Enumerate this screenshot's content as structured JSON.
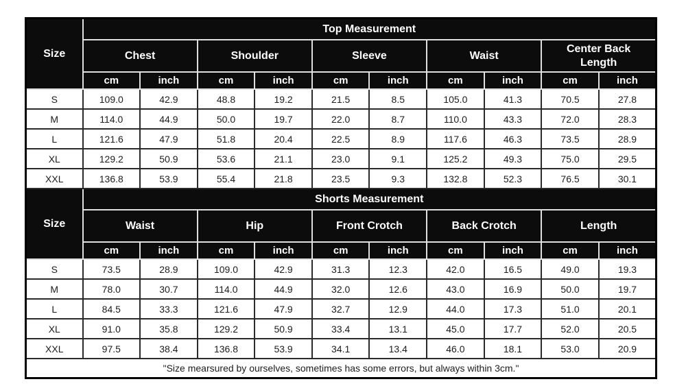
{
  "page": {
    "background": "#ffffff"
  },
  "colors": {
    "header_bg": "#0c0c0c",
    "header_text": "#ffffff",
    "cell_bg": "#ffffff",
    "cell_text": "#1c1c1c",
    "grid_light": "#e0e0e0",
    "grid_dark": "#2a2a2a",
    "outer_border": "#000000"
  },
  "chart_data": [
    {
      "type": "table",
      "title": "Top Measurement",
      "size_header": "Size",
      "measure_columns": [
        "Chest",
        "Shoulder",
        "Sleeve",
        "Waist",
        "Center Back Length"
      ],
      "unit_columns": [
        "cm",
        "inch"
      ],
      "row_labels": [
        "S",
        "M",
        "L",
        "XL",
        "XXL"
      ],
      "rows": [
        [
          "109.0",
          "42.9",
          "48.8",
          "19.2",
          "21.5",
          "8.5",
          "105.0",
          "41.3",
          "70.5",
          "27.8"
        ],
        [
          "114.0",
          "44.9",
          "50.0",
          "19.7",
          "22.0",
          "8.7",
          "110.0",
          "43.3",
          "72.0",
          "28.3"
        ],
        [
          "121.6",
          "47.9",
          "51.8",
          "20.4",
          "22.5",
          "8.9",
          "117.6",
          "46.3",
          "73.5",
          "28.9"
        ],
        [
          "129.2",
          "50.9",
          "53.6",
          "21.1",
          "23.0",
          "9.1",
          "125.2",
          "49.3",
          "75.0",
          "29.5"
        ],
        [
          "136.8",
          "53.9",
          "55.4",
          "21.8",
          "23.5",
          "9.3",
          "132.8",
          "52.3",
          "76.5",
          "30.1"
        ]
      ]
    },
    {
      "type": "table",
      "title": "Shorts Measurement",
      "size_header": "Size",
      "measure_columns": [
        "Waist",
        "Hip",
        "Front Crotch",
        "Back Crotch",
        "Length"
      ],
      "unit_columns": [
        "cm",
        "inch"
      ],
      "row_labels": [
        "S",
        "M",
        "L",
        "XL",
        "XXL"
      ],
      "rows": [
        [
          "73.5",
          "28.9",
          "109.0",
          "42.9",
          "31.3",
          "12.3",
          "42.0",
          "16.5",
          "49.0",
          "19.3"
        ],
        [
          "78.0",
          "30.7",
          "114.0",
          "44.9",
          "32.0",
          "12.6",
          "43.0",
          "16.9",
          "50.0",
          "19.7"
        ],
        [
          "84.5",
          "33.3",
          "121.6",
          "47.9",
          "32.7",
          "12.9",
          "44.0",
          "17.3",
          "51.0",
          "20.1"
        ],
        [
          "91.0",
          "35.8",
          "129.2",
          "50.9",
          "33.4",
          "13.1",
          "45.0",
          "17.7",
          "52.0",
          "20.5"
        ],
        [
          "97.5",
          "38.4",
          "136.8",
          "53.9",
          "34.1",
          "13.4",
          "46.0",
          "18.1",
          "53.0",
          "20.9"
        ]
      ]
    }
  ],
  "footnote": "\"Size mearsured by ourselves, sometimes has some errors, but always within 3cm.\""
}
